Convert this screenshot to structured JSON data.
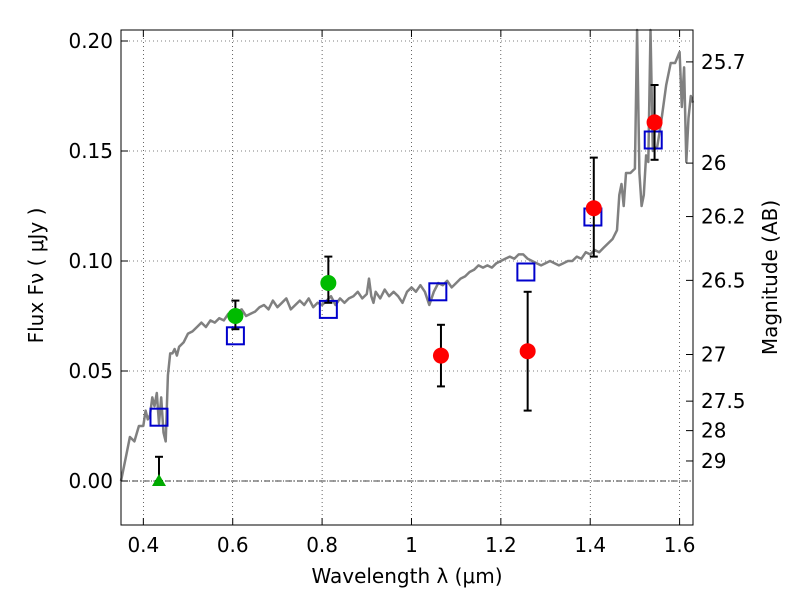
{
  "chart_data": {
    "type": "scatter",
    "xlabel": "Wavelength  λ (μm)",
    "ylabel": "Flux  Fν  ( μJy )",
    "y2label": "Magnitude (AB)",
    "xlim": [
      0.35,
      1.63
    ],
    "ylim": [
      -0.02,
      0.205
    ],
    "grid": true,
    "x_ticks": [
      {
        "value": 0.4,
        "label": "0.4"
      },
      {
        "value": 0.6,
        "label": "0.6"
      },
      {
        "value": 0.8,
        "label": "0.8"
      },
      {
        "value": 1.0,
        "label": "1"
      },
      {
        "value": 1.2,
        "label": "1.2"
      },
      {
        "value": 1.4,
        "label": "1.4"
      },
      {
        "value": 1.6,
        "label": "1.6"
      }
    ],
    "y_ticks": [
      {
        "value": 0.0,
        "label": "0.00"
      },
      {
        "value": 0.05,
        "label": "0.05"
      },
      {
        "value": 0.1,
        "label": "0.10"
      },
      {
        "value": 0.15,
        "label": "0.15"
      },
      {
        "value": 0.2,
        "label": "0.20"
      }
    ],
    "mag_ticks": [
      {
        "value": 0.1905,
        "label": "25.7"
      },
      {
        "value": 0.1445,
        "label": "26"
      },
      {
        "value": 0.1202,
        "label": "26.2"
      },
      {
        "value": 0.0912,
        "label": "26.5"
      },
      {
        "value": 0.0575,
        "label": "27"
      },
      {
        "value": 0.0363,
        "label": "27.5"
      },
      {
        "value": 0.0229,
        "label": "28"
      },
      {
        "value": 0.0091,
        "label": "29"
      }
    ],
    "zero_line": 0.0,
    "series": [
      {
        "kind": "model_spectrum",
        "color": "#808080",
        "x": [
          0.35,
          0.36,
          0.37,
          0.38,
          0.39,
          0.4,
          0.405,
          0.41,
          0.415,
          0.42,
          0.425,
          0.43,
          0.435,
          0.44,
          0.445,
          0.45,
          0.455,
          0.46,
          0.465,
          0.47,
          0.475,
          0.48,
          0.49,
          0.5,
          0.51,
          0.52,
          0.53,
          0.54,
          0.55,
          0.56,
          0.57,
          0.58,
          0.59,
          0.6,
          0.61,
          0.62,
          0.63,
          0.64,
          0.65,
          0.66,
          0.67,
          0.68,
          0.69,
          0.7,
          0.71,
          0.72,
          0.73,
          0.74,
          0.75,
          0.76,
          0.77,
          0.78,
          0.79,
          0.8,
          0.81,
          0.82,
          0.83,
          0.84,
          0.85,
          0.86,
          0.87,
          0.88,
          0.89,
          0.9,
          0.905,
          0.91,
          0.915,
          0.92,
          0.93,
          0.94,
          0.95,
          0.96,
          0.97,
          0.98,
          0.99,
          1.0,
          1.01,
          1.02,
          1.03,
          1.04,
          1.05,
          1.06,
          1.07,
          1.08,
          1.09,
          1.1,
          1.11,
          1.12,
          1.13,
          1.14,
          1.15,
          1.16,
          1.17,
          1.18,
          1.19,
          1.2,
          1.21,
          1.22,
          1.23,
          1.24,
          1.25,
          1.26,
          1.27,
          1.28,
          1.29,
          1.3,
          1.31,
          1.32,
          1.33,
          1.34,
          1.35,
          1.36,
          1.37,
          1.38,
          1.39,
          1.4,
          1.41,
          1.42,
          1.43,
          1.44,
          1.45,
          1.46,
          1.465,
          1.47,
          1.475,
          1.48,
          1.49,
          1.5,
          1.505,
          1.51,
          1.515,
          1.52,
          1.525,
          1.53,
          1.535,
          1.54,
          1.55,
          1.56,
          1.57,
          1.58,
          1.59,
          1.6,
          1.605,
          1.61,
          1.615,
          1.62,
          1.625,
          1.63
        ],
        "y": [
          0.0,
          0.01,
          0.02,
          0.018,
          0.025,
          0.025,
          0.032,
          0.028,
          0.03,
          0.038,
          0.034,
          0.04,
          0.026,
          0.038,
          0.022,
          0.018,
          0.048,
          0.058,
          0.058,
          0.06,
          0.057,
          0.061,
          0.063,
          0.067,
          0.068,
          0.07,
          0.072,
          0.07,
          0.073,
          0.072,
          0.074,
          0.073,
          0.076,
          0.075,
          0.077,
          0.078,
          0.075,
          0.076,
          0.077,
          0.079,
          0.08,
          0.078,
          0.082,
          0.079,
          0.081,
          0.083,
          0.078,
          0.08,
          0.082,
          0.08,
          0.083,
          0.079,
          0.081,
          0.08,
          0.082,
          0.084,
          0.08,
          0.083,
          0.081,
          0.083,
          0.084,
          0.086,
          0.083,
          0.085,
          0.092,
          0.084,
          0.081,
          0.086,
          0.083,
          0.087,
          0.084,
          0.086,
          0.084,
          0.081,
          0.086,
          0.088,
          0.086,
          0.089,
          0.086,
          0.08,
          0.086,
          0.09,
          0.089,
          0.091,
          0.088,
          0.09,
          0.092,
          0.093,
          0.095,
          0.096,
          0.098,
          0.097,
          0.098,
          0.097,
          0.099,
          0.1,
          0.101,
          0.102,
          0.101,
          0.103,
          0.103,
          0.101,
          0.1,
          0.099,
          0.098,
          0.099,
          0.1,
          0.099,
          0.098,
          0.099,
          0.1,
          0.1,
          0.102,
          0.101,
          0.104,
          0.103,
          0.105,
          0.104,
          0.106,
          0.108,
          0.11,
          0.114,
          0.13,
          0.135,
          0.125,
          0.14,
          0.14,
          0.142,
          0.205,
          0.14,
          0.125,
          0.13,
          0.148,
          0.145,
          0.205,
          0.15,
          0.152,
          0.165,
          0.18,
          0.19,
          0.19,
          0.195,
          0.17,
          0.188,
          0.145,
          0.165,
          0.175,
          0.172
        ]
      },
      {
        "kind": "model_photometry",
        "marker": "open-square",
        "color": "#0000cc",
        "x": [
          0.435,
          0.606,
          0.814,
          1.059,
          1.256,
          1.406,
          1.541
        ],
        "y": [
          0.029,
          0.066,
          0.078,
          0.086,
          0.095,
          0.12,
          0.155
        ]
      },
      {
        "kind": "measured_red",
        "marker": "filled-circle",
        "color": "#ff0000",
        "x": [
          1.066,
          1.26,
          1.408,
          1.544
        ],
        "y": [
          0.057,
          0.059,
          0.124,
          0.163
        ],
        "yerr_low": [
          0.043,
          0.032,
          0.102,
          0.146
        ],
        "yerr_high": [
          0.071,
          0.086,
          0.147,
          0.18
        ]
      },
      {
        "kind": "measured_green",
        "marker": "filled-circle",
        "color": "#00bb00",
        "x": [
          0.606,
          0.814
        ],
        "y": [
          0.075,
          0.09
        ],
        "yerr_low": [
          0.069,
          0.081
        ],
        "yerr_high": [
          0.082,
          0.102
        ]
      },
      {
        "kind": "upper_limit",
        "marker": "triangle-up",
        "color": "#00aa00",
        "x": [
          0.435
        ],
        "y": [
          0.0
        ],
        "yerr_low": [
          0.0
        ],
        "yerr_high": [
          0.011
        ]
      }
    ]
  }
}
